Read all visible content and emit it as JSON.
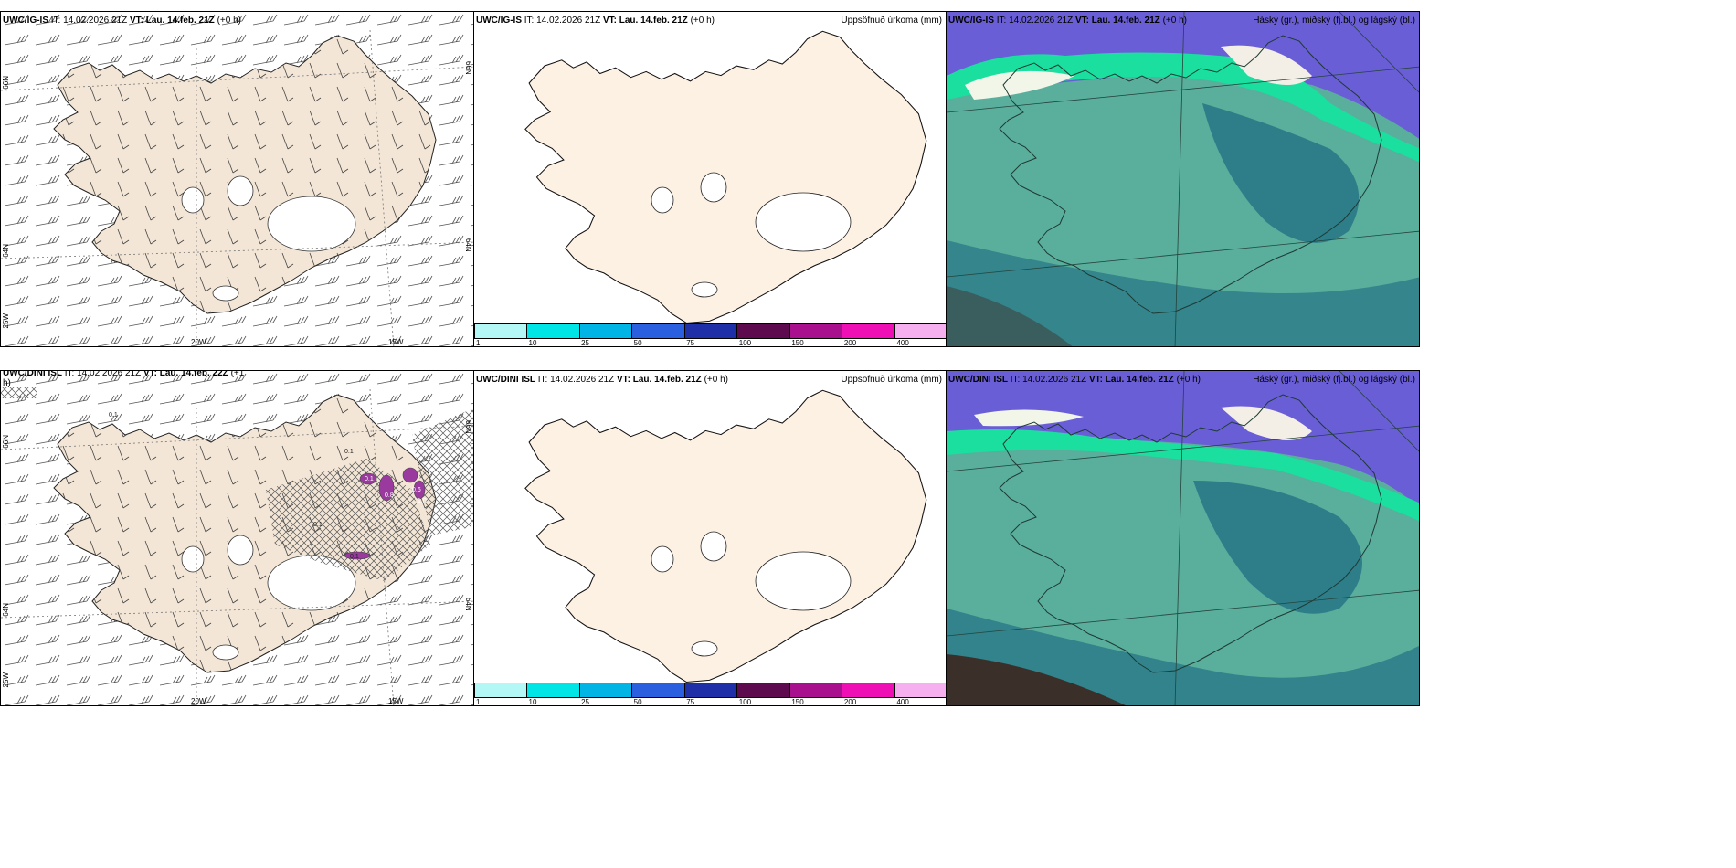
{
  "wind_panel_top": {
    "model": "UWC/IG-IS",
    "it_label": "IT:",
    "it_value": "14.02.2026 21Z",
    "vt_label": "VT:",
    "vt_value": "Lau. 14.feb. 21Z",
    "lead": "(+0 h)",
    "lat_left_top": "66N",
    "lat_left_mid": "64N",
    "lon_left_bottom": "25W",
    "lat_right_top": "66N",
    "lat_right_mid": "64N",
    "lon_bottom_1": "20W",
    "lon_bottom_2": "15W"
  },
  "precip_panel_top": {
    "model": "UWC/IG-IS",
    "it_label": "IT:",
    "it_value": "14.02.2026 21Z",
    "vt_label": "VT:",
    "vt_value": "Lau. 14.feb. 21Z",
    "lead": "(+0 h)",
    "right_title": "Uppsöfnuð úrkoma (mm)"
  },
  "cloud_panel_top": {
    "model": "UWC/IG-IS",
    "it_label": "IT:",
    "it_value": "14.02.2026 21Z",
    "vt_label": "VT:",
    "vt_value": "Lau. 14.feb. 21Z",
    "lead": "(+0 h)",
    "right_title": "Háský (gr.), miðský (fj.bl.) og lágský (bl.)"
  },
  "wind_panel_bottom": {
    "model": "UWC/DINI ISL",
    "it_label": "IT:",
    "it_value": "14.02.2026 21Z",
    "vt_label": "VT:",
    "vt_value": "Lau. 14.feb. 22Z",
    "lead_part1": "(+1",
    "lead_part2": "h)",
    "lat_left_top": "66N",
    "lat_left_mid": "64N",
    "lon_left_bottom": "25W",
    "lat_right_top": "66N",
    "lat_right_mid": "64N",
    "lon_bottom_1": "20W",
    "lon_bottom_2": "15W",
    "precip_labels": [
      "0.1",
      "0.1",
      "0.8",
      "0.1",
      "0.6",
      "0.1",
      "0.1",
      "1.0"
    ]
  },
  "precip_panel_bottom": {
    "model": "UWC/DINI ISL",
    "it_label": "IT:",
    "it_value": "14.02.2026 21Z",
    "vt_label": "VT:",
    "vt_value": "Lau. 14.feb. 21Z",
    "lead": "(+0 h)",
    "right_title": "Uppsöfnuð úrkoma (mm)"
  },
  "cloud_panel_bottom": {
    "model": "UWC/DINI ISL",
    "it_label": "IT:",
    "it_value": "14.02.2026 21Z",
    "vt_label": "VT:",
    "vt_value": "Lau. 14.feb. 21Z",
    "lead": "(+0 h)",
    "right_title": "Háský (gr.), miðský (fj.bl.) og lágský (bl.)"
  },
  "colorbar": {
    "colors": [
      "#b3f7f7",
      "#00e6e6",
      "#00b4e6",
      "#2a5fe0",
      "#1f2fa8",
      "#5e0a4e",
      "#a8108e",
      "#ee10b4",
      "#f6b0f0"
    ],
    "ticks": [
      "1",
      "10",
      "25",
      "50",
      "75",
      "100",
      "150",
      "200",
      "400"
    ]
  },
  "colors": {
    "land_wind": "#f3e6d6",
    "land_precip": "#fdf1e4",
    "cloud_low": "#5aae9c",
    "cloud_mid": "#2e7e8a",
    "cloud_high": "#1adf9e",
    "cloud_top": "#6a5ed6"
  }
}
